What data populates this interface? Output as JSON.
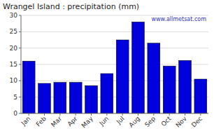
{
  "chart_data": {
    "type": "bar",
    "title": "Wrangel Island : precipitation (mm)",
    "categories": [
      "Jan",
      "Feb",
      "Mar",
      "Apr",
      "May",
      "Jun",
      "Jul",
      "Aug",
      "Sep",
      "Oct",
      "Nov",
      "Dec"
    ],
    "values": [
      16.0,
      9.2,
      9.5,
      9.5,
      8.5,
      12.2,
      22.5,
      28.0,
      21.5,
      14.5,
      16.2,
      10.5
    ],
    "color": "#0000dd",
    "ylim": [
      0,
      30
    ],
    "yticks": [
      0,
      5,
      10,
      15,
      20,
      25,
      30
    ],
    "grid": true,
    "annotation": "www.allmetsat.com"
  }
}
